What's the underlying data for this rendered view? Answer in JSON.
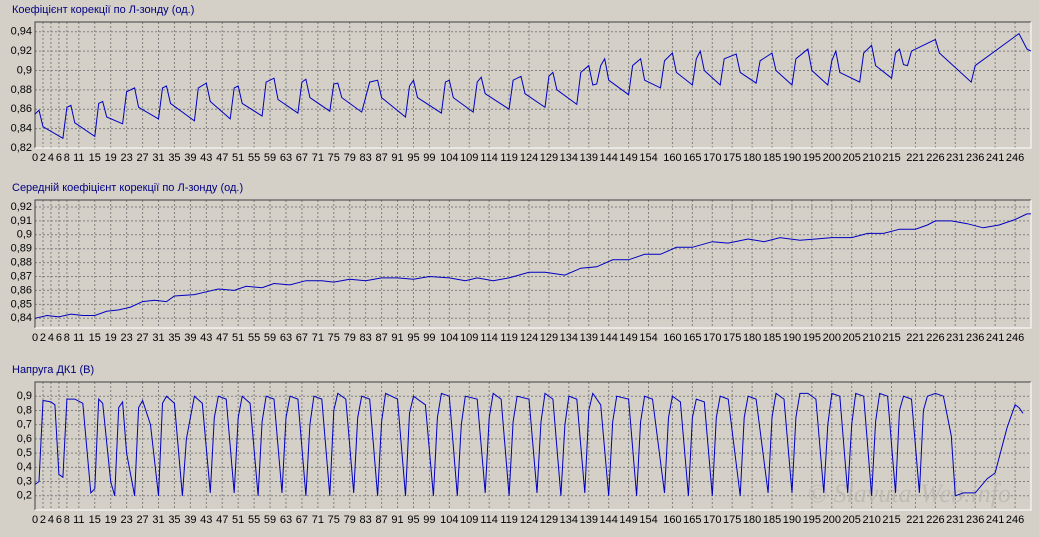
{
  "chart_data": [
    {
      "type": "line",
      "title": "Коефіцієнт корекції по Л-зонду (од.)",
      "x": [
        0,
        1,
        2,
        7,
        8,
        9,
        10,
        15,
        16,
        17,
        18,
        22,
        23,
        25,
        26,
        31,
        32,
        33,
        34,
        40,
        41,
        43,
        44,
        49,
        50,
        51,
        52,
        57,
        58,
        60,
        61,
        66,
        67,
        68,
        69,
        74,
        75,
        76,
        77,
        82,
        84,
        86,
        87,
        93,
        94,
        95,
        96,
        102,
        103,
        104,
        105,
        110,
        111,
        112,
        113,
        119,
        120,
        122,
        123,
        128,
        129,
        130,
        131,
        136,
        137,
        139,
        140,
        141,
        142,
        143,
        144,
        149,
        150,
        152,
        153,
        157,
        158,
        160,
        161,
        165,
        166,
        167,
        168,
        172,
        173,
        176,
        177,
        181,
        182,
        185,
        186,
        190,
        191,
        194,
        195,
        199,
        200,
        201,
        202,
        207,
        208,
        210,
        211,
        215,
        216,
        217,
        218,
        219,
        220,
        224,
        226,
        227,
        235,
        236,
        247,
        249,
        250
      ],
      "series": [
        {
          "color": "#0000c0",
          "values": [
            0.855,
            0.859,
            0.842,
            0.83,
            0.862,
            0.864,
            0.846,
            0.832,
            0.866,
            0.868,
            0.852,
            0.845,
            0.878,
            0.882,
            0.862,
            0.85,
            0.882,
            0.884,
            0.866,
            0.848,
            0.882,
            0.887,
            0.868,
            0.85,
            0.882,
            0.884,
            0.866,
            0.853,
            0.888,
            0.892,
            0.87,
            0.856,
            0.888,
            0.891,
            0.872,
            0.858,
            0.886,
            0.887,
            0.872,
            0.857,
            0.888,
            0.89,
            0.872,
            0.852,
            0.884,
            0.89,
            0.872,
            0.856,
            0.888,
            0.89,
            0.872,
            0.857,
            0.888,
            0.893,
            0.876,
            0.86,
            0.89,
            0.894,
            0.876,
            0.862,
            0.894,
            0.898,
            0.88,
            0.865,
            0.898,
            0.905,
            0.885,
            0.886,
            0.905,
            0.912,
            0.89,
            0.875,
            0.905,
            0.912,
            0.89,
            0.882,
            0.91,
            0.918,
            0.898,
            0.885,
            0.912,
            0.92,
            0.9,
            0.885,
            0.912,
            0.917,
            0.898,
            0.887,
            0.91,
            0.918,
            0.9,
            0.885,
            0.912,
            0.922,
            0.9,
            0.885,
            0.91,
            0.92,
            0.898,
            0.888,
            0.918,
            0.926,
            0.905,
            0.892,
            0.918,
            0.922,
            0.906,
            0.905,
            0.92,
            0.928,
            0.932,
            0.918,
            0.888,
            0.905,
            0.938,
            0.922,
            0.92
          ]
        }
      ],
      "xlim": [
        0,
        250
      ],
      "xticks": [
        0,
        2,
        4,
        6,
        8,
        11,
        15,
        19,
        23,
        27,
        31,
        35,
        39,
        43,
        47,
        51,
        55,
        59,
        63,
        67,
        71,
        75,
        79,
        83,
        87,
        91,
        95,
        99,
        104,
        109,
        114,
        119,
        124,
        129,
        134,
        139,
        144,
        149,
        154,
        160,
        165,
        170,
        175,
        180,
        185,
        190,
        195,
        200,
        205,
        210,
        215,
        221,
        226,
        231,
        236,
        241,
        246
      ],
      "ylim": [
        0.82,
        0.95
      ],
      "yticks": [
        {
          "value": 0.82,
          "label": "0,82"
        },
        {
          "value": 0.84,
          "label": "0,84"
        },
        {
          "value": 0.86,
          "label": "0,86"
        },
        {
          "value": 0.88,
          "label": "0,88"
        },
        {
          "value": 0.9,
          "label": "0,9"
        },
        {
          "value": 0.92,
          "label": "0,92"
        },
        {
          "value": 0.94,
          "label": "0,94"
        }
      ],
      "grid": true
    },
    {
      "type": "line",
      "title": "Середній коефіцієнт корекції по Л-зонду (од.)",
      "x": [
        0,
        3,
        6,
        9,
        12,
        15,
        18,
        21,
        24,
        27,
        30,
        33,
        35,
        40,
        43,
        46,
        50,
        53,
        57,
        60,
        64,
        68,
        72,
        75,
        79,
        83,
        87,
        91,
        95,
        99,
        104,
        108,
        111,
        115,
        119,
        124,
        128,
        133,
        137,
        141,
        145,
        149,
        153,
        157,
        161,
        165,
        170,
        174,
        179,
        183,
        187,
        192,
        196,
        200,
        205,
        209,
        213,
        217,
        221,
        224,
        226,
        230,
        234,
        238,
        242,
        246,
        249,
        250
      ],
      "series": [
        {
          "color": "#0000c0",
          "values": [
            0.84,
            0.842,
            0.841,
            0.843,
            0.842,
            0.842,
            0.845,
            0.846,
            0.848,
            0.852,
            0.853,
            0.852,
            0.856,
            0.857,
            0.859,
            0.861,
            0.86,
            0.863,
            0.862,
            0.865,
            0.864,
            0.867,
            0.867,
            0.866,
            0.868,
            0.867,
            0.869,
            0.869,
            0.868,
            0.87,
            0.869,
            0.867,
            0.869,
            0.867,
            0.869,
            0.873,
            0.873,
            0.871,
            0.876,
            0.877,
            0.882,
            0.882,
            0.886,
            0.886,
            0.891,
            0.891,
            0.895,
            0.894,
            0.897,
            0.895,
            0.898,
            0.896,
            0.897,
            0.898,
            0.898,
            0.901,
            0.901,
            0.904,
            0.904,
            0.907,
            0.91,
            0.91,
            0.908,
            0.905,
            0.907,
            0.911,
            0.915,
            0.915
          ]
        }
      ],
      "xlim": [
        0,
        250
      ],
      "xticks": [
        0,
        2,
        4,
        6,
        8,
        11,
        15,
        19,
        23,
        27,
        31,
        35,
        39,
        43,
        47,
        51,
        55,
        59,
        63,
        67,
        71,
        75,
        79,
        83,
        87,
        91,
        95,
        99,
        104,
        109,
        114,
        119,
        124,
        129,
        134,
        139,
        144,
        149,
        154,
        160,
        165,
        170,
        175,
        180,
        185,
        190,
        195,
        200,
        205,
        210,
        215,
        221,
        226,
        231,
        236,
        241,
        246
      ],
      "ylim": [
        0.833,
        0.925
      ],
      "yticks": [
        {
          "value": 0.84,
          "label": "0,84"
        },
        {
          "value": 0.85,
          "label": "0,85"
        },
        {
          "value": 0.86,
          "label": "0,86"
        },
        {
          "value": 0.87,
          "label": "0,87"
        },
        {
          "value": 0.88,
          "label": "0,88"
        },
        {
          "value": 0.89,
          "label": "0,89"
        },
        {
          "value": 0.9,
          "label": "0,9"
        },
        {
          "value": 0.91,
          "label": "0,91"
        },
        {
          "value": 0.92,
          "label": "0,92"
        }
      ],
      "grid": true
    },
    {
      "type": "line",
      "title": "Напруга ДК1 (В)",
      "annotation": "© Slavuta-Web.info",
      "x": [
        0,
        1,
        2,
        4,
        5,
        6,
        7,
        8,
        10,
        12,
        14,
        15,
        16,
        17,
        19,
        20,
        21,
        22,
        23,
        25,
        26,
        27,
        29,
        31,
        32,
        33,
        35,
        37,
        38,
        40,
        42,
        44,
        45,
        46,
        48,
        50,
        51,
        52,
        54,
        56,
        57,
        58,
        60,
        62,
        63,
        64,
        66,
        68,
        69,
        70,
        72,
        74,
        75,
        76,
        78,
        80,
        81,
        82,
        84,
        86,
        87,
        88,
        91,
        93,
        94,
        95,
        98,
        100,
        101,
        102,
        104,
        106,
        107,
        108,
        111,
        113,
        114,
        115,
        117,
        119,
        120,
        121,
        124,
        126,
        127,
        128,
        130,
        132,
        133,
        134,
        136,
        138,
        139,
        140,
        142,
        144,
        145,
        146,
        149,
        151,
        152,
        153,
        155,
        158,
        159,
        160,
        162,
        164,
        165,
        166,
        168,
        170,
        171,
        172,
        174,
        177,
        178,
        179,
        181,
        184,
        185,
        186,
        188,
        190,
        191,
        192,
        194,
        196,
        198,
        199,
        200,
        202,
        204,
        205,
        206,
        208,
        210,
        211,
        212,
        214,
        216,
        217,
        218,
        220,
        222,
        223,
        224,
        226,
        228,
        230,
        231,
        233,
        236,
        239,
        241,
        244,
        246,
        247,
        248
      ],
      "series": [
        {
          "color": "#0000c0",
          "values": [
            0.28,
            0.3,
            0.87,
            0.86,
            0.84,
            0.35,
            0.33,
            0.88,
            0.88,
            0.85,
            0.22,
            0.25,
            0.88,
            0.85,
            0.3,
            0.2,
            0.82,
            0.86,
            0.5,
            0.2,
            0.82,
            0.87,
            0.7,
            0.2,
            0.85,
            0.9,
            0.85,
            0.2,
            0.6,
            0.9,
            0.85,
            0.22,
            0.75,
            0.9,
            0.88,
            0.22,
            0.75,
            0.9,
            0.85,
            0.2,
            0.72,
            0.9,
            0.88,
            0.22,
            0.75,
            0.9,
            0.88,
            0.2,
            0.7,
            0.9,
            0.88,
            0.2,
            0.8,
            0.92,
            0.88,
            0.22,
            0.75,
            0.9,
            0.88,
            0.2,
            0.72,
            0.92,
            0.88,
            0.2,
            0.78,
            0.9,
            0.84,
            0.2,
            0.75,
            0.92,
            0.9,
            0.2,
            0.7,
            0.9,
            0.88,
            0.22,
            0.75,
            0.92,
            0.88,
            0.2,
            0.72,
            0.9,
            0.88,
            0.22,
            0.72,
            0.92,
            0.88,
            0.2,
            0.7,
            0.9,
            0.88,
            0.22,
            0.8,
            0.92,
            0.84,
            0.2,
            0.72,
            0.9,
            0.88,
            0.2,
            0.72,
            0.9,
            0.88,
            0.22,
            0.75,
            0.9,
            0.86,
            0.2,
            0.75,
            0.88,
            0.86,
            0.2,
            0.75,
            0.9,
            0.88,
            0.2,
            0.75,
            0.9,
            0.88,
            0.22,
            0.75,
            0.92,
            0.88,
            0.22,
            0.75,
            0.92,
            0.92,
            0.88,
            0.22,
            0.7,
            0.92,
            0.9,
            0.22,
            0.7,
            0.92,
            0.9,
            0.2,
            0.72,
            0.92,
            0.9,
            0.22,
            0.8,
            0.9,
            0.88,
            0.22,
            0.8,
            0.9,
            0.92,
            0.9,
            0.62,
            0.2,
            0.22,
            0.22,
            0.32,
            0.36,
            0.68,
            0.84,
            0.82,
            0.78
          ]
        }
      ],
      "xlim": [
        0,
        250
      ],
      "xticks": [
        0,
        2,
        4,
        6,
        8,
        11,
        15,
        19,
        23,
        27,
        31,
        35,
        39,
        43,
        47,
        51,
        55,
        59,
        63,
        67,
        71,
        75,
        79,
        83,
        87,
        91,
        95,
        99,
        104,
        109,
        114,
        119,
        124,
        129,
        134,
        139,
        144,
        149,
        154,
        160,
        165,
        170,
        175,
        180,
        185,
        190,
        195,
        200,
        205,
        210,
        215,
        221,
        226,
        231,
        236,
        241,
        246
      ],
      "ylim": [
        0.1,
        1.0
      ],
      "yticks": [
        {
          "value": 0.2,
          "label": "0,2"
        },
        {
          "value": 0.3,
          "label": "0,3"
        },
        {
          "value": 0.4,
          "label": "0,4"
        },
        {
          "value": 0.5,
          "label": "0,5"
        },
        {
          "value": 0.6,
          "label": "0,6"
        },
        {
          "value": 0.7,
          "label": "0,7"
        },
        {
          "value": 0.8,
          "label": "0,8"
        },
        {
          "value": 0.9,
          "label": "0,9"
        }
      ],
      "grid": true
    }
  ]
}
